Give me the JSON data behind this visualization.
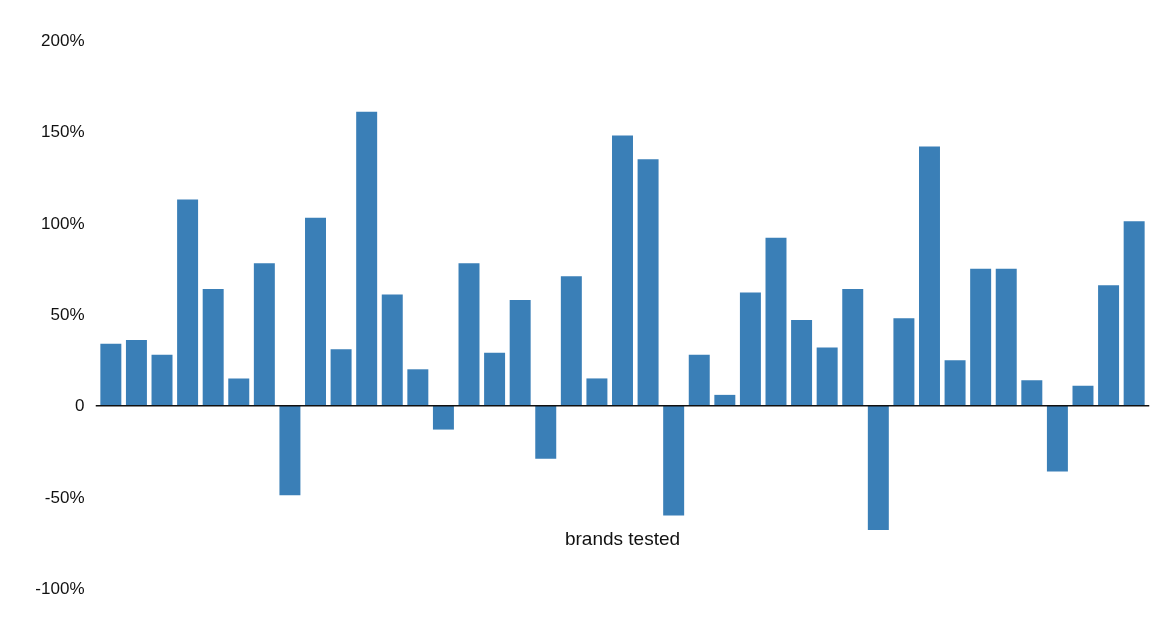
{
  "chart_data": {
    "type": "bar",
    "xlabel": "brands tested",
    "categories": [
      null,
      null,
      null,
      null,
      null,
      null,
      null,
      null,
      null,
      null,
      null,
      null,
      null,
      null,
      null,
      null,
      null,
      null,
      null,
      null,
      null,
      null,
      null,
      null,
      null,
      null,
      null,
      null,
      null,
      null,
      null,
      null,
      null,
      null,
      null,
      null,
      null,
      null,
      null,
      null,
      null
    ],
    "values": [
      34,
      36,
      28,
      113,
      64,
      15,
      78,
      -49,
      103,
      31,
      161,
      61,
      20,
      -13,
      78,
      29,
      58,
      -29,
      71,
      15,
      148,
      135,
      -60,
      28,
      6,
      62,
      92,
      47,
      32,
      64,
      -68,
      48,
      142,
      25,
      75,
      75,
      14,
      -36,
      11,
      66,
      101
    ],
    "color": "#3a7fb7",
    "ylim": [
      -100,
      200
    ],
    "yticks": [
      {
        "value": -100,
        "label": "-100%"
      },
      {
        "value": -50,
        "label": "-50%"
      },
      0,
      {
        "value": 50,
        "label": "50%"
      },
      {
        "value": 100,
        "label": "100%"
      },
      {
        "value": 150,
        "label": "150%"
      },
      {
        "value": 200,
        "label": "200%"
      }
    ],
    "ref_lines": [
      {
        "axis": "y",
        "value": 0,
        "color": "#111111"
      }
    ],
    "grid": false,
    "tick_labels": "y"
  }
}
